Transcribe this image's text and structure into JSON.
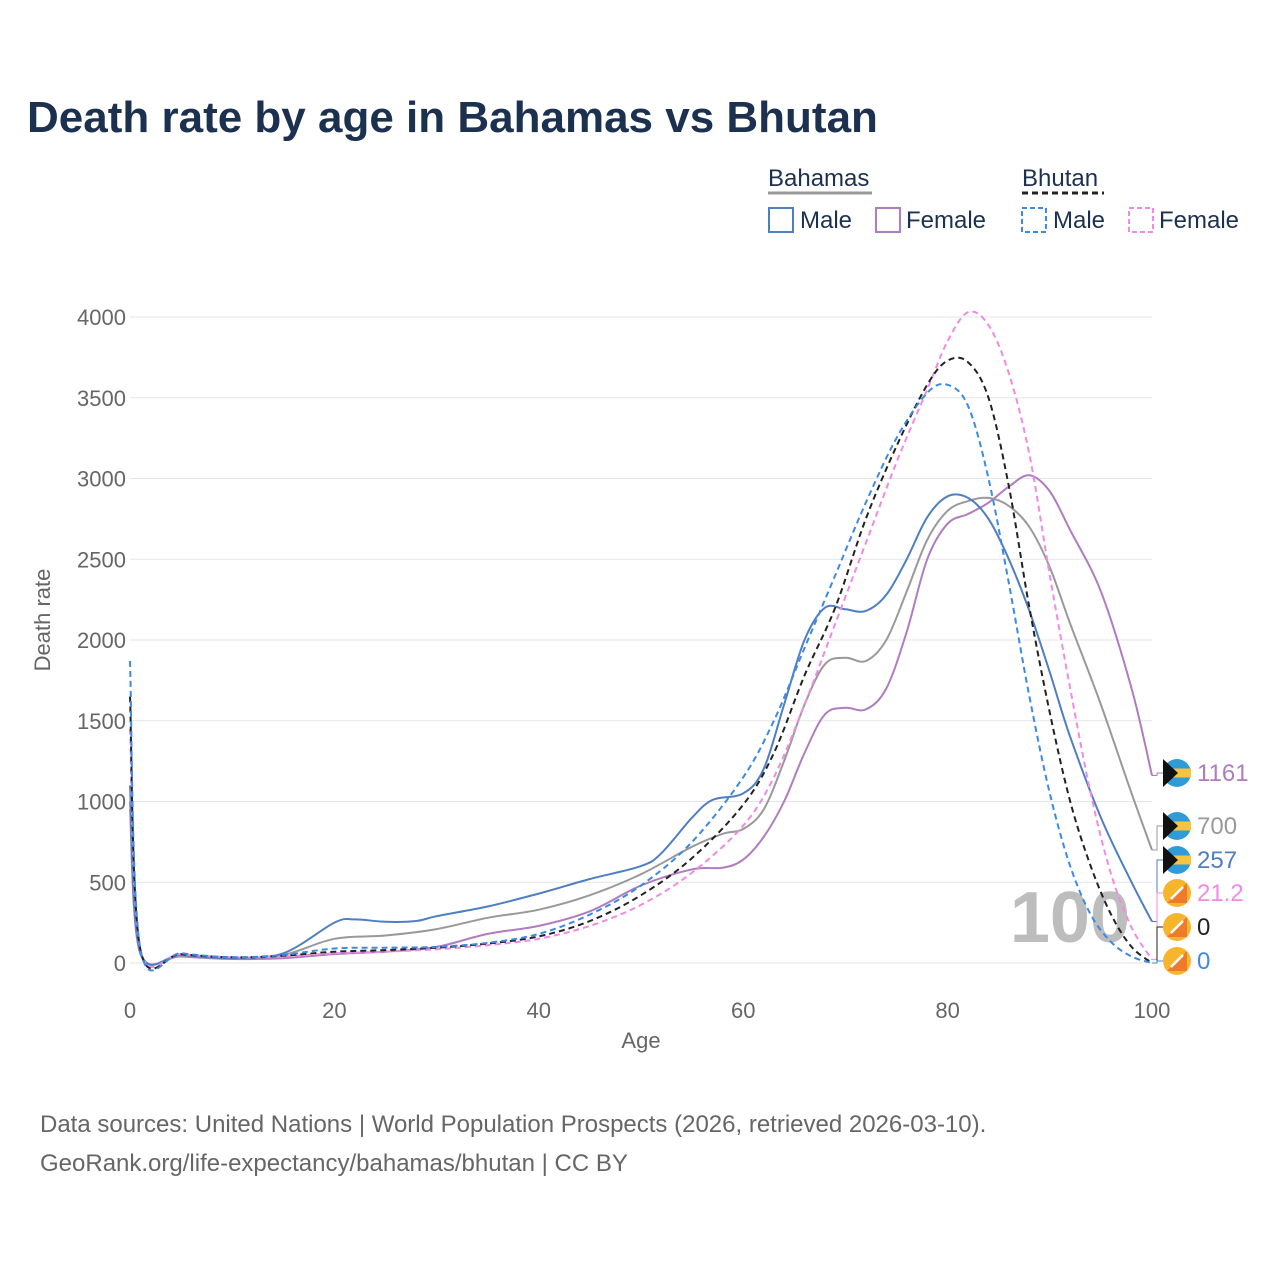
{
  "title": "Death rate by age in Bahamas vs Bhutan",
  "legend": {
    "groups": [
      {
        "country": "Bahamas",
        "line_color": "#999999",
        "dashed": false,
        "items": [
          {
            "label": "Male",
            "color": "#4f7fc2"
          },
          {
            "label": "Female",
            "color": "#b07cc0"
          }
        ]
      },
      {
        "country": "Bhutan",
        "line_color": "#222222",
        "dashed": true,
        "items": [
          {
            "label": "Male",
            "color": "#3a8ae6"
          },
          {
            "label": "Female",
            "color": "#f08ae6"
          }
        ]
      }
    ]
  },
  "watermark": "100",
  "source_lines": [
    "Data sources: United Nations | World Population Prospects (2026, retrieved 2026-03-10).",
    "GeoRank.org/life-expectancy/bahamas/bhutan | CC BY"
  ],
  "chart_data": {
    "type": "line",
    "title": "Death rate by age in Bahamas vs Bhutan",
    "xlabel": "Age",
    "ylabel": "Death rate",
    "xlim": [
      0,
      100
    ],
    "ylim": [
      0,
      4000
    ],
    "xticks": [
      0,
      20,
      40,
      60,
      80,
      100
    ],
    "yticks": [
      0,
      500,
      1000,
      1500,
      2000,
      2500,
      3000,
      3500,
      4000
    ],
    "grid": true,
    "series": [
      {
        "name": "Bahamas Female",
        "country": "Bahamas",
        "sex": "Female",
        "color": "#b07cc0",
        "dashed": false,
        "end_label": "1161",
        "points": [
          [
            0,
            950
          ],
          [
            1,
            60
          ],
          [
            5,
            40
          ],
          [
            10,
            25
          ],
          [
            15,
            30
          ],
          [
            20,
            55
          ],
          [
            25,
            70
          ],
          [
            30,
            100
          ],
          [
            35,
            180
          ],
          [
            40,
            230
          ],
          [
            45,
            320
          ],
          [
            50,
            480
          ],
          [
            55,
            580
          ],
          [
            58,
            590
          ],
          [
            60,
            640
          ],
          [
            62,
            780
          ],
          [
            64,
            1000
          ],
          [
            66,
            1300
          ],
          [
            68,
            1540
          ],
          [
            70,
            1580
          ],
          [
            72,
            1570
          ],
          [
            74,
            1700
          ],
          [
            76,
            2050
          ],
          [
            78,
            2500
          ],
          [
            80,
            2720
          ],
          [
            82,
            2780
          ],
          [
            84,
            2850
          ],
          [
            86,
            2950
          ],
          [
            88,
            3020
          ],
          [
            90,
            2920
          ],
          [
            92,
            2680
          ],
          [
            95,
            2300
          ],
          [
            98,
            1700
          ],
          [
            100,
            1161
          ]
        ]
      },
      {
        "name": "Bahamas Total",
        "country": "Bahamas",
        "sex": "Total",
        "color": "#999999",
        "dashed": false,
        "end_label": "700",
        "points": [
          [
            0,
            1000
          ],
          [
            1,
            65
          ],
          [
            5,
            45
          ],
          [
            10,
            28
          ],
          [
            15,
            50
          ],
          [
            20,
            150
          ],
          [
            25,
            170
          ],
          [
            30,
            210
          ],
          [
            35,
            280
          ],
          [
            40,
            330
          ],
          [
            45,
            420
          ],
          [
            50,
            550
          ],
          [
            55,
            720
          ],
          [
            58,
            800
          ],
          [
            60,
            830
          ],
          [
            62,
            950
          ],
          [
            64,
            1250
          ],
          [
            66,
            1600
          ],
          [
            68,
            1850
          ],
          [
            70,
            1890
          ],
          [
            72,
            1870
          ],
          [
            74,
            2000
          ],
          [
            76,
            2300
          ],
          [
            78,
            2620
          ],
          [
            80,
            2800
          ],
          [
            82,
            2860
          ],
          [
            84,
            2880
          ],
          [
            86,
            2830
          ],
          [
            88,
            2700
          ],
          [
            90,
            2450
          ],
          [
            92,
            2100
          ],
          [
            95,
            1600
          ],
          [
            98,
            1050
          ],
          [
            100,
            700
          ]
        ]
      },
      {
        "name": "Bahamas Male",
        "country": "Bahamas",
        "sex": "Male",
        "color": "#4f7fc2",
        "dashed": false,
        "end_label": "257",
        "points": [
          [
            0,
            1100
          ],
          [
            1,
            70
          ],
          [
            5,
            50
          ],
          [
            10,
            30
          ],
          [
            15,
            60
          ],
          [
            20,
            250
          ],
          [
            22,
            270
          ],
          [
            25,
            255
          ],
          [
            28,
            260
          ],
          [
            30,
            290
          ],
          [
            35,
            350
          ],
          [
            40,
            430
          ],
          [
            45,
            520
          ],
          [
            50,
            600
          ],
          [
            52,
            680
          ],
          [
            55,
            900
          ],
          [
            57,
            1010
          ],
          [
            60,
            1050
          ],
          [
            62,
            1200
          ],
          [
            64,
            1600
          ],
          [
            66,
            2000
          ],
          [
            68,
            2200
          ],
          [
            70,
            2190
          ],
          [
            72,
            2180
          ],
          [
            74,
            2280
          ],
          [
            76,
            2500
          ],
          [
            78,
            2760
          ],
          [
            80,
            2890
          ],
          [
            82,
            2880
          ],
          [
            84,
            2750
          ],
          [
            86,
            2500
          ],
          [
            88,
            2180
          ],
          [
            90,
            1800
          ],
          [
            92,
            1400
          ],
          [
            95,
            900
          ],
          [
            98,
            500
          ],
          [
            100,
            257
          ]
        ]
      },
      {
        "name": "Bhutan Female",
        "country": "Bhutan",
        "sex": "Female",
        "color": "#f08ae6",
        "dashed": true,
        "end_label": "21.2",
        "points": [
          [
            0,
            1450
          ],
          [
            1,
            85
          ],
          [
            5,
            55
          ],
          [
            10,
            35
          ],
          [
            15,
            40
          ],
          [
            20,
            60
          ],
          [
            25,
            70
          ],
          [
            30,
            85
          ],
          [
            35,
            110
          ],
          [
            40,
            150
          ],
          [
            45,
            230
          ],
          [
            50,
            360
          ],
          [
            55,
            560
          ],
          [
            60,
            850
          ],
          [
            63,
            1150
          ],
          [
            66,
            1600
          ],
          [
            69,
            2100
          ],
          [
            72,
            2600
          ],
          [
            75,
            3100
          ],
          [
            78,
            3550
          ],
          [
            80,
            3850
          ],
          [
            82,
            4030
          ],
          [
            84,
            3950
          ],
          [
            86,
            3650
          ],
          [
            88,
            3150
          ],
          [
            90,
            2400
          ],
          [
            92,
            1700
          ],
          [
            94,
            1050
          ],
          [
            96,
            550
          ],
          [
            98,
            220
          ],
          [
            100,
            21
          ]
        ]
      },
      {
        "name": "Bhutan Total",
        "country": "Bhutan",
        "sex": "Total",
        "color": "#222222",
        "dashed": true,
        "end_label": "0",
        "points": [
          [
            0,
            1650
          ],
          [
            1,
            90
          ],
          [
            5,
            55
          ],
          [
            10,
            35
          ],
          [
            15,
            45
          ],
          [
            20,
            70
          ],
          [
            25,
            80
          ],
          [
            30,
            95
          ],
          [
            35,
            120
          ],
          [
            40,
            165
          ],
          [
            45,
            260
          ],
          [
            50,
            420
          ],
          [
            55,
            650
          ],
          [
            60,
            980
          ],
          [
            63,
            1300
          ],
          [
            66,
            1780
          ],
          [
            69,
            2200
          ],
          [
            72,
            2750
          ],
          [
            75,
            3200
          ],
          [
            78,
            3580
          ],
          [
            80,
            3730
          ],
          [
            82,
            3720
          ],
          [
            84,
            3500
          ],
          [
            86,
            2950
          ],
          [
            88,
            2200
          ],
          [
            90,
            1550
          ],
          [
            92,
            1000
          ],
          [
            94,
            600
          ],
          [
            96,
            300
          ],
          [
            98,
            100
          ],
          [
            100,
            0
          ]
        ]
      },
      {
        "name": "Bhutan Male",
        "country": "Bhutan",
        "sex": "Male",
        "color": "#3a8ae6",
        "dashed": true,
        "end_label": "0",
        "points": [
          [
            0,
            1870
          ],
          [
            1,
            95
          ],
          [
            5,
            60
          ],
          [
            10,
            35
          ],
          [
            15,
            50
          ],
          [
            20,
            90
          ],
          [
            25,
            95
          ],
          [
            30,
            100
          ],
          [
            35,
            125
          ],
          [
            40,
            180
          ],
          [
            45,
            300
          ],
          [
            50,
            480
          ],
          [
            55,
            750
          ],
          [
            60,
            1150
          ],
          [
            63,
            1500
          ],
          [
            66,
            1950
          ],
          [
            69,
            2400
          ],
          [
            72,
            2850
          ],
          [
            75,
            3250
          ],
          [
            78,
            3530
          ],
          [
            80,
            3580
          ],
          [
            82,
            3450
          ],
          [
            84,
            3000
          ],
          [
            86,
            2350
          ],
          [
            88,
            1650
          ],
          [
            90,
            1050
          ],
          [
            92,
            600
          ],
          [
            94,
            300
          ],
          [
            96,
            130
          ],
          [
            98,
            40
          ],
          [
            100,
            0
          ]
        ]
      }
    ]
  }
}
